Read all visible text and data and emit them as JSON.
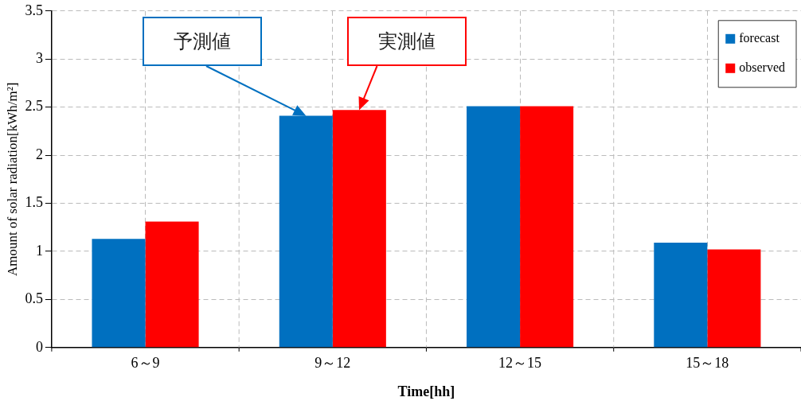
{
  "chart_data": {
    "type": "bar",
    "xlabel": "Time[hh]",
    "ylabel": "Amount of solar radiation[kWh/m²]",
    "categories": [
      "6～9",
      "9～12",
      "12～15",
      "15～18"
    ],
    "series": [
      {
        "name": "forecast",
        "color": "#0070c0",
        "values": [
          1.13,
          2.41,
          2.51,
          1.09
        ]
      },
      {
        "name": "observed",
        "color": "#ff0000",
        "values": [
          1.31,
          2.47,
          2.51,
          1.02
        ]
      }
    ],
    "ylim": [
      0,
      3.5
    ],
    "yticks": [
      0,
      0.5,
      1,
      1.5,
      2,
      2.5,
      3,
      3.5
    ],
    "grid": true,
    "legend": "top right",
    "annotations": [
      "予測値",
      "実測値"
    ]
  }
}
